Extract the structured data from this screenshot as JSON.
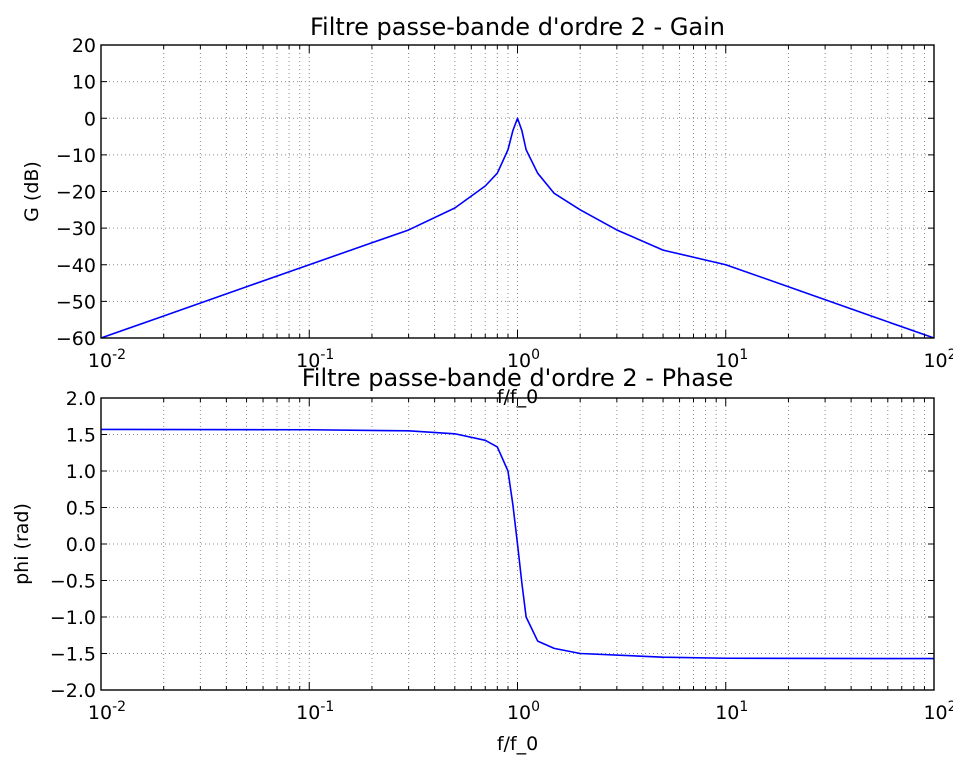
{
  "chart_data": [
    {
      "type": "line",
      "title": "Filtre passe-bande d'ordre 2 - Gain",
      "xlabel": "f/f_0",
      "ylabel": "G (dB)",
      "xscale": "log",
      "xlim": [
        0.01,
        100
      ],
      "ylim": [
        -60,
        20
      ],
      "grid": true,
      "x_ticks": [
        {
          "base": "10",
          "exp": "-2"
        },
        {
          "base": "10",
          "exp": "-1"
        },
        {
          "base": "10",
          "exp": "0"
        },
        {
          "base": "10",
          "exp": "1"
        },
        {
          "base": "10",
          "exp": "2"
        }
      ],
      "y_ticks": [
        "20",
        "10",
        "0",
        "−10",
        "−20",
        "−30",
        "−40",
        "−50",
        "−60"
      ],
      "series": [
        {
          "color": "#0000ff",
          "x": [
            0.01,
            0.02,
            0.05,
            0.1,
            0.2,
            0.3,
            0.5,
            0.7,
            0.8,
            0.9,
            0.95,
            1.0,
            1.05,
            1.1,
            1.25,
            1.5,
            2,
            3,
            5,
            10,
            20,
            50,
            100
          ],
          "y": [
            -60,
            -54,
            -46,
            -40,
            -34,
            -30.5,
            -24.5,
            -18.5,
            -15,
            -8.6,
            -3.4,
            0,
            -3.4,
            -8.6,
            -15,
            -20.5,
            -25,
            -30.5,
            -36,
            -40,
            -46,
            -54,
            -60
          ]
        }
      ]
    },
    {
      "type": "line",
      "title": "Filtre passe-bande d'ordre 2 - Phase",
      "xlabel": "f/f_0",
      "ylabel": "phi (rad)",
      "xscale": "log",
      "xlim": [
        0.01,
        100
      ],
      "ylim": [
        -2.0,
        2.0
      ],
      "grid": true,
      "x_ticks": [
        {
          "base": "10",
          "exp": "-2"
        },
        {
          "base": "10",
          "exp": "-1"
        },
        {
          "base": "10",
          "exp": "0"
        },
        {
          "base": "10",
          "exp": "1"
        },
        {
          "base": "10",
          "exp": "2"
        }
      ],
      "y_ticks": [
        "2.0",
        "1.5",
        "1.0",
        "0.5",
        "0.0",
        "−0.5",
        "−1.0",
        "−1.5",
        "−2.0"
      ],
      "series": [
        {
          "color": "#0000ff",
          "x": [
            0.01,
            0.1,
            0.3,
            0.5,
            0.7,
            0.8,
            0.9,
            0.95,
            1.0,
            1.05,
            1.1,
            1.25,
            1.5,
            2,
            5,
            10,
            100
          ],
          "y": [
            1.57,
            1.565,
            1.55,
            1.51,
            1.42,
            1.33,
            1.0,
            0.54,
            0,
            -0.54,
            -1.0,
            -1.33,
            -1.43,
            -1.5,
            -1.55,
            -1.565,
            -1.57
          ]
        }
      ]
    }
  ]
}
